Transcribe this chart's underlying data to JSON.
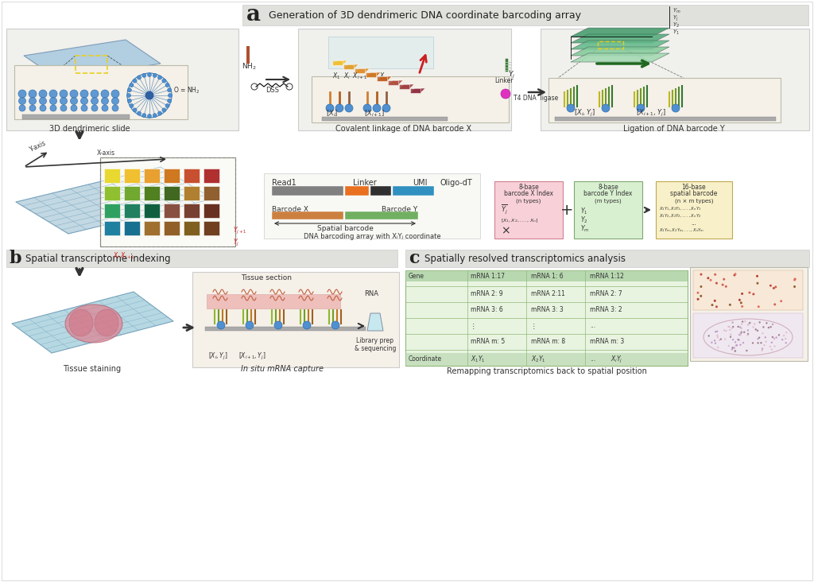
{
  "title_a": "Generation of 3D dendrimeric DNA coordinate barcoding array",
  "title_b": "Spatial transcriptome indexing",
  "title_c": "Spatially resolved transcriptomics analysis",
  "label_3d_slide": "3D dendrimeric slide",
  "label_cov_x": "Covalent linkage of DNA barcode X",
  "label_lig_y": "Ligation of DNA barcode Y",
  "label_tissue": "Tissue staining",
  "label_insitu": "In situ mRNA capture",
  "label_remap": "Remapping transcriptomics back to spatial position",
  "label_dna_barcoding": "DNA barcoding array with XᵢYⱼ coordinate",
  "bg_color": "#ffffff",
  "grid_colors_row1": [
    "#e8d830",
    "#f0c030",
    "#e8a030",
    "#d07820",
    "#c85030",
    "#b03030"
  ],
  "grid_colors_row2": [
    "#90c030",
    "#70a830",
    "#508020",
    "#406820",
    "#b08030",
    "#906030"
  ],
  "grid_colors_row3": [
    "#30a060",
    "#208060",
    "#106040",
    "#885040",
    "#784030",
    "#683020"
  ],
  "grid_colors_row4": [
    "#2080a0",
    "#187090",
    "#a07030",
    "#906028",
    "#806020",
    "#704020"
  ],
  "colors_3d": [
    "#f0c030",
    "#e0a030",
    "#e09030",
    "#d07820",
    "#c06020",
    "#b05040",
    "#a04040",
    "#903040"
  ],
  "green_colors": [
    "#a0d8b0",
    "#80c898",
    "#60b888",
    "#50a878",
    "#409868"
  ],
  "ybar_cols": [
    "#c0b820",
    "#90a820",
    "#709820",
    "#508830",
    "#307830",
    "#407030",
    "#406840"
  ],
  "bead_color": "#5090d0",
  "bead_edge": "#3070b0",
  "slide_color": "#a8c8e0",
  "slide_edge": "#7090b0",
  "panel_bg": "#f0f0ec",
  "zoom_bg": "#f5f0e8",
  "base_color": "#aaaaaa",
  "arrow_color": "#333333",
  "text_color": "#333333",
  "title_bg": "#e0e0dc",
  "table_bg": "#e8f4e0",
  "table_header": "#b8d8b0",
  "table_coord": "#c8e0c0",
  "table_edge": "#90b878"
}
